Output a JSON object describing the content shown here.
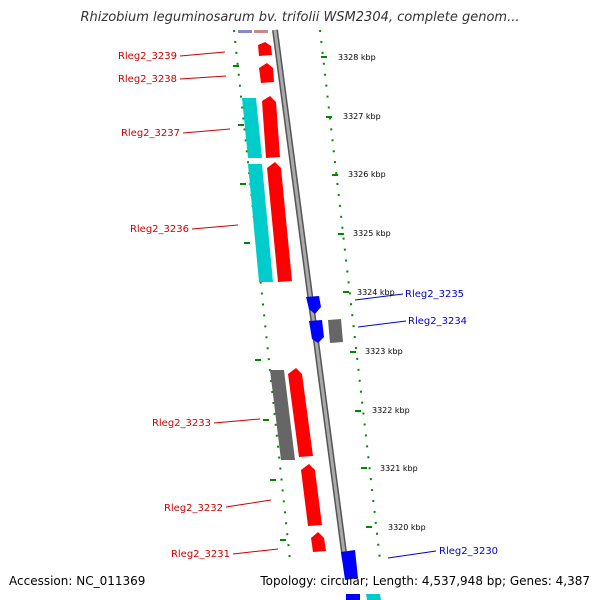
{
  "title": "Rhizobium leguminosarum bv. trifolii WSM2304, complete genom...",
  "footer": {
    "accession": "Accession: NC_011369",
    "summary": "Topology: circular; Length: 4,537,948 bp; Genes: 4,387"
  },
  "ticks": [
    "3328 kbp",
    "3327 kbp",
    "3326 kbp",
    "3325 kbp",
    "3324 kbp",
    "3323 kbp",
    "3322 kbp",
    "3321 kbp",
    "3320 kbp"
  ],
  "colors": {
    "forward_gene": "#ff0000",
    "reverse_gene": "#0000ff",
    "cds_feature": "#00cccc",
    "other_feature": "#666666",
    "backbone": "#888888",
    "tick": "#008800",
    "label_forward": "#cc0000",
    "label_reverse": "#0000cc"
  },
  "genes": [
    {
      "label": "Rleg2_3239",
      "strand": "forward"
    },
    {
      "label": "Rleg2_3238",
      "strand": "forward"
    },
    {
      "label": "Rleg2_3237",
      "strand": "forward"
    },
    {
      "label": "Rleg2_3236",
      "strand": "forward"
    },
    {
      "label": "Rleg2_3235",
      "strand": "reverse"
    },
    {
      "label": "Rleg2_3234",
      "strand": "reverse"
    },
    {
      "label": "Rleg2_3233",
      "strand": "forward"
    },
    {
      "label": "Rleg2_3232",
      "strand": "forward"
    },
    {
      "label": "Rleg2_3231",
      "strand": "forward"
    },
    {
      "label": "Rleg2_3230",
      "strand": "reverse"
    }
  ]
}
